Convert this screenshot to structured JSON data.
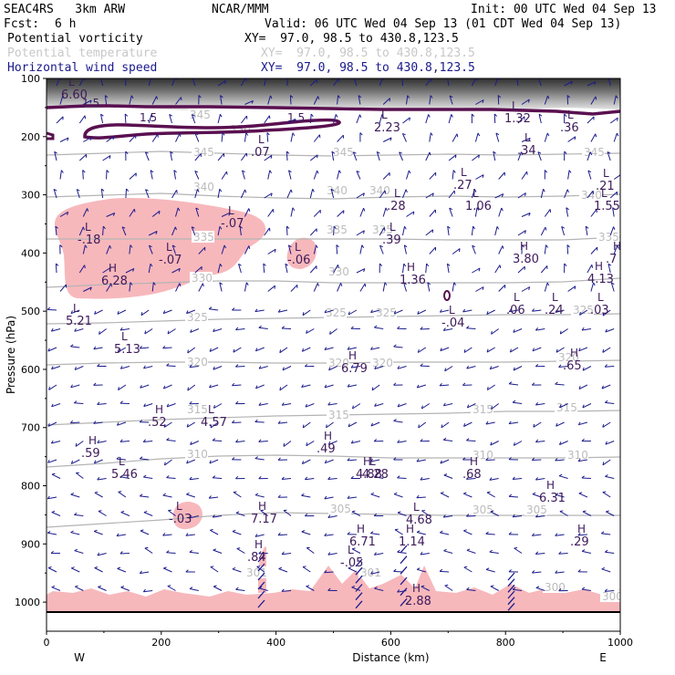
{
  "header": {
    "model": "SEAC4RS   3km ARW",
    "org": "NCAR/MMM",
    "init": "Init: 00 UTC Wed 04 Sep 13",
    "fcst_label": "Fcst:",
    "fcst_value": "6 h",
    "valid": "Valid: 06 UTC Wed 04 Sep 13 (01 CDT Wed 04 Sep 13)"
  },
  "fields": [
    {
      "name": "Potential vorticity",
      "xy": "XY=  97.0, 98.5 to 430.8,123.5",
      "color": "#000000"
    },
    {
      "name": "Potential temperature",
      "xy": "XY=  97.0, 98.5 to 430.8,123.5",
      "color": "#c8c8c8"
    },
    {
      "name": "Horizontal wind speed",
      "xy": "XY=  97.0, 98.5 to 430.8,123.5",
      "color": "#1a1a8c"
    }
  ],
  "colors": {
    "pv_fill": "#f7b8bc",
    "theta_line": "#b4b4b4",
    "pv_contour": "#5a1050",
    "barb": "#1a1a8c",
    "label_text": "#3c1a5a"
  },
  "chart_data": {
    "type": "cross-section",
    "xlabel": "Distance (km)",
    "ylabel": "Pressure (hPa)",
    "xlim": [
      0,
      1000
    ],
    "ylim": [
      1050,
      100
    ],
    "x_ticks": [
      0,
      200,
      400,
      600,
      800,
      1000
    ],
    "y_ticks": [
      100,
      200,
      300,
      400,
      500,
      600,
      700,
      800,
      900,
      1000
    ],
    "x_end_labels": {
      "left": "W",
      "right": "E"
    },
    "theta_isentropes": [
      {
        "value": "345",
        "points": [
          [
            0,
            170
          ],
          [
            100,
            168
          ],
          [
            200,
            166
          ],
          [
            300,
            168
          ],
          [
            400,
            170
          ],
          [
            500,
            171
          ],
          [
            600,
            170
          ],
          [
            700,
            169
          ],
          [
            800,
            170
          ],
          [
            900,
            169
          ],
          [
            1000,
            168
          ]
        ]
      },
      {
        "value": "340",
        "points": [
          [
            0,
            216
          ],
          [
            100,
            214
          ],
          [
            200,
            212
          ],
          [
            300,
            215
          ],
          [
            400,
            217
          ],
          [
            500,
            218
          ],
          [
            600,
            216
          ],
          [
            700,
            215
          ],
          [
            800,
            216
          ],
          [
            900,
            215
          ],
          [
            1000,
            213
          ]
        ]
      },
      {
        "value": "335",
        "points": [
          [
            0,
            262
          ],
          [
            100,
            262
          ],
          [
            200,
            262
          ],
          [
            300,
            262
          ],
          [
            400,
            262
          ],
          [
            500,
            262
          ],
          [
            600,
            262
          ],
          [
            700,
            263
          ],
          [
            800,
            263
          ],
          [
            900,
            263
          ],
          [
            1000,
            260
          ]
        ]
      },
      {
        "value": "330",
        "points": [
          [
            0,
            315
          ],
          [
            100,
            312
          ],
          [
            200,
            310
          ],
          [
            300,
            308
          ],
          [
            400,
            308
          ],
          [
            500,
            310
          ],
          [
            600,
            310
          ],
          [
            700,
            310
          ],
          [
            800,
            310
          ],
          [
            900,
            309
          ],
          [
            1000,
            305
          ]
        ]
      },
      {
        "value": "325",
        "points": [
          [
            0,
            355
          ],
          [
            100,
            354
          ],
          [
            200,
            352
          ],
          [
            300,
            350
          ],
          [
            400,
            349
          ],
          [
            500,
            348
          ],
          [
            600,
            347
          ],
          [
            700,
            346
          ],
          [
            800,
            345
          ],
          [
            900,
            345
          ],
          [
            1000,
            344
          ]
        ]
      },
      {
        "value": "320",
        "points": [
          [
            0,
            400
          ],
          [
            100,
            398
          ],
          [
            200,
            397
          ],
          [
            300,
            397
          ],
          [
            400,
            398
          ],
          [
            500,
            398
          ],
          [
            600,
            397
          ],
          [
            700,
            397
          ],
          [
            800,
            397
          ],
          [
            900,
            396
          ],
          [
            1000,
            395
          ]
        ]
      },
      {
        "value": "315",
        "points": [
          [
            0,
            466
          ],
          [
            100,
            463
          ],
          [
            200,
            460
          ],
          [
            300,
            458
          ],
          [
            400,
            456
          ],
          [
            500,
            455
          ],
          [
            600,
            454
          ],
          [
            700,
            453
          ],
          [
            800,
            451
          ],
          [
            900,
            451
          ],
          [
            1000,
            450
          ]
        ]
      },
      {
        "value": "310",
        "points": [
          [
            0,
            512
          ],
          [
            100,
            508
          ],
          [
            200,
            503
          ],
          [
            300,
            500
          ],
          [
            400,
            499
          ],
          [
            500,
            500
          ],
          [
            600,
            502
          ],
          [
            700,
            502
          ],
          [
            800,
            502
          ],
          [
            900,
            502
          ],
          [
            1000,
            501
          ]
        ]
      },
      {
        "value": "305",
        "points": [
          [
            0,
            578
          ],
          [
            100,
            574
          ],
          [
            200,
            570
          ],
          [
            300,
            565
          ],
          [
            400,
            562
          ],
          [
            500,
            563
          ],
          [
            600,
            564
          ],
          [
            700,
            565
          ],
          [
            800,
            565
          ],
          [
            900,
            565
          ],
          [
            1000,
            565
          ]
        ]
      }
    ],
    "theta_labels": [
      {
        "text": "345",
        "x": 208,
        "y": 130
      },
      {
        "text": "350",
        "x": 252,
        "y": 146
      },
      {
        "text": "345",
        "x": 212,
        "y": 171
      },
      {
        "text": "345",
        "x": 365,
        "y": 171
      },
      {
        "text": "345",
        "x": 640,
        "y": 171
      },
      {
        "text": "340",
        "x": 212,
        "y": 209
      },
      {
        "text": "340",
        "x": 358,
        "y": 213
      },
      {
        "text": "340",
        "x": 405,
        "y": 213
      },
      {
        "text": "340",
        "x": 637,
        "y": 218
      },
      {
        "text": "335",
        "x": 212,
        "y": 264
      },
      {
        "text": "335",
        "x": 358,
        "y": 256
      },
      {
        "text": "335",
        "x": 408,
        "y": 256
      },
      {
        "text": "335",
        "x": 656,
        "y": 264
      },
      {
        "text": "330",
        "x": 210,
        "y": 309
      },
      {
        "text": "330",
        "x": 360,
        "y": 302
      },
      {
        "text": "325",
        "x": 205,
        "y": 352
      },
      {
        "text": "325",
        "x": 357,
        "y": 347
      },
      {
        "text": "325",
        "x": 412,
        "y": 347
      },
      {
        "text": "325",
        "x": 628,
        "y": 344
      },
      {
        "text": "320",
        "x": 205,
        "y": 401
      },
      {
        "text": "320",
        "x": 360,
        "y": 402
      },
      {
        "text": "320",
        "x": 408,
        "y": 402
      },
      {
        "text": "320",
        "x": 612,
        "y": 396
      },
      {
        "text": "315",
        "x": 205,
        "y": 453
      },
      {
        "text": "315",
        "x": 360,
        "y": 459
      },
      {
        "text": "315",
        "x": 518,
        "y": 453
      },
      {
        "text": "315",
        "x": 610,
        "y": 451
      },
      {
        "text": "310",
        "x": 205,
        "y": 502
      },
      {
        "text": "310",
        "x": 518,
        "y": 503
      },
      {
        "text": "310",
        "x": 622,
        "y": 503
      },
      {
        "text": "305",
        "x": 362,
        "y": 562
      },
      {
        "text": "305",
        "x": 518,
        "y": 563
      },
      {
        "text": "305",
        "x": 577,
        "y": 563
      },
      {
        "text": "301",
        "x": 270,
        "y": 632
      },
      {
        "text": "301",
        "x": 395,
        "y": 632
      },
      {
        "text": "300",
        "x": 597,
        "y": 648
      },
      {
        "text": "300",
        "x": 660,
        "y": 658
      }
    ],
    "pv_contour_labels": [
      {
        "text": "1.5",
        "x": 90,
        "y": 117
      },
      {
        "text": "1.5",
        "x": 153,
        "y": 133
      },
      {
        "text": "1.5",
        "x": 315,
        "y": 133
      }
    ],
    "extrema": [
      {
        "kind": "L",
        "value": "6.60",
        "x": 75,
        "y": 94
      },
      {
        "kind": "L",
        "value": "2.23",
        "x": 418,
        "y": 130
      },
      {
        "kind": "L",
        "value": "1.32",
        "x": 561,
        "y": 120
      },
      {
        "kind": "L",
        "value": ".36",
        "x": 622,
        "y": 130
      },
      {
        "kind": "L",
        "value": ".07",
        "x": 283,
        "y": 157
      },
      {
        "kind": "L",
        "value": ".34",
        "x": 575,
        "y": 155
      },
      {
        "kind": "L",
        "value": ".27",
        "x": 505,
        "y": 193
      },
      {
        "kind": "L",
        "value": ".28",
        "x": 432,
        "y": 216
      },
      {
        "kind": "L",
        "value": "1.06",
        "x": 518,
        "y": 216
      },
      {
        "kind": "L",
        "value": ".21",
        "x": 661,
        "y": 194
      },
      {
        "kind": "L",
        "value": "1.55",
        "x": 659,
        "y": 216
      },
      {
        "kind": "L",
        "value": "-.07",
        "x": 250,
        "y": 235
      },
      {
        "kind": "L",
        "value": "-.18",
        "x": 93,
        "y": 253
      },
      {
        "kind": "L",
        "value": ".39",
        "x": 427,
        "y": 253
      },
      {
        "kind": "H",
        "value": "3.80",
        "x": 570,
        "y": 274
      },
      {
        "kind": "H",
        "value": ".7",
        "x": 672,
        "y": 274
      },
      {
        "kind": "L",
        "value": "-.07",
        "x": 182,
        "y": 275
      },
      {
        "kind": "L",
        "value": "-.06",
        "x": 323,
        "y": 275
      },
      {
        "kind": "H",
        "value": "6.28",
        "x": 119,
        "y": 298
      },
      {
        "kind": "H",
        "value": "1.36",
        "x": 446,
        "y": 297
      },
      {
        "kind": "H",
        "value": "4.13",
        "x": 652,
        "y": 296
      },
      {
        "kind": "L",
        "value": "-.04",
        "x": 492,
        "y": 344
      },
      {
        "kind": "L",
        "value": ".06",
        "x": 563,
        "y": 330
      },
      {
        "kind": "L",
        "value": ".24",
        "x": 605,
        "y": 330
      },
      {
        "kind": "L",
        "value": ".03",
        "x": 655,
        "y": 330
      },
      {
        "kind": "L",
        "value": "5.21",
        "x": 80,
        "y": 342
      },
      {
        "kind": "L",
        "value": "5.13",
        "x": 133,
        "y": 373
      },
      {
        "kind": "H",
        "value": "6.79",
        "x": 382,
        "y": 394
      },
      {
        "kind": "H",
        "value": ".65",
        "x": 625,
        "y": 391
      },
      {
        "kind": "H",
        "value": ".52",
        "x": 170,
        "y": 453
      },
      {
        "kind": "L",
        "value": "4.57",
        "x": 228,
        "y": 453
      },
      {
        "kind": "H",
        "value": ".49",
        "x": 355,
        "y": 482
      },
      {
        "kind": "H",
        "value": ".59",
        "x": 97,
        "y": 487
      },
      {
        "kind": "L",
        "value": "5.46",
        "x": 130,
        "y": 510
      },
      {
        "kind": "H",
        "value": "4.88",
        "x": 398,
        "y": 510
      },
      {
        "kind": "L",
        "value": "4.28",
        "x": 405,
        "y": 510
      },
      {
        "kind": "H",
        "value": ".68",
        "x": 515,
        "y": 510
      },
      {
        "kind": "H",
        "value": "6.31",
        "x": 599,
        "y": 536
      },
      {
        "kind": "L",
        "value": "-.03",
        "x": 193,
        "y": 559
      },
      {
        "kind": "H",
        "value": "7.17",
        "x": 283,
        "y": 559
      },
      {
        "kind": "L",
        "value": "4.68",
        "x": 453,
        "y": 560
      },
      {
        "kind": "H",
        "value": "6.71",
        "x": 391,
        "y": 584
      },
      {
        "kind": "H",
        "value": "1.14",
        "x": 445,
        "y": 584
      },
      {
        "kind": "H",
        "value": ".29",
        "x": 633,
        "y": 584
      },
      {
        "kind": "H",
        "value": ".84",
        "x": 279,
        "y": 601
      },
      {
        "kind": "L",
        "value": "-.05",
        "x": 381,
        "y": 607
      },
      {
        "kind": "H",
        "value": "2.88",
        "x": 452,
        "y": 649
      }
    ]
  }
}
